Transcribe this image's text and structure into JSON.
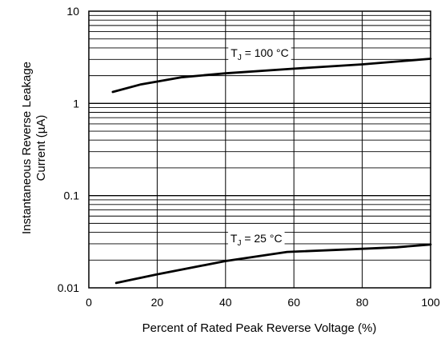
{
  "chart_data": {
    "type": "line",
    "title": "",
    "xlabel": "Percent of Rated Peak Reverse Voltage (%)",
    "ylabel_lines": [
      "Instantaneous Reverse Leakage",
      "Current (µA)"
    ],
    "xlim": [
      0,
      100
    ],
    "ylim": [
      0.01,
      10
    ],
    "y_scale": "log",
    "x_ticks": [
      0,
      20,
      40,
      60,
      80,
      100
    ],
    "x_tick_labels": [
      "0",
      "20",
      "40",
      "60",
      "80",
      "100"
    ],
    "y_ticks": [
      0.01,
      0.1,
      1,
      10
    ],
    "y_tick_labels": [
      "0.01",
      "0.1",
      "1",
      "10"
    ],
    "grid": true,
    "colors": {
      "line": "#000000",
      "grid": "#000000",
      "background": "#ffffff"
    },
    "series": [
      {
        "label_main": "T",
        "label_sub": "J",
        "label_rest": " = 100 °C",
        "label_at_x": 50,
        "x": [
          7,
          15,
          27,
          40,
          60,
          80,
          100
        ],
        "y": [
          1.33,
          1.6,
          1.92,
          2.12,
          2.38,
          2.65,
          3.05
        ]
      },
      {
        "label_main": "T",
        "label_sub": "J",
        "label_rest": " = 25 °C",
        "label_at_x": 49,
        "x": [
          8,
          20,
          40,
          58,
          80,
          90,
          100
        ],
        "y": [
          0.0113,
          0.014,
          0.0195,
          0.0245,
          0.0265,
          0.0275,
          0.0295
        ]
      }
    ]
  }
}
